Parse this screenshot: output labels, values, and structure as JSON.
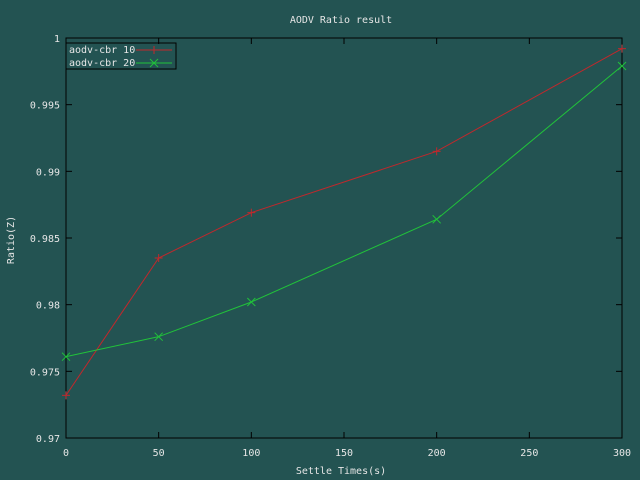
{
  "chart_data": {
    "type": "line",
    "title": "AODV Ratio result",
    "xlabel": "Settle Times(s)",
    "ylabel": "Ratio(Z)",
    "xlim": [
      0,
      300
    ],
    "ylim": [
      0.97,
      1
    ],
    "xticks": [
      "0",
      "50",
      "100",
      "150",
      "200",
      "250",
      "300"
    ],
    "yticks": [
      "0.97",
      "0.975",
      "0.98",
      "0.985",
      "0.99",
      "0.995",
      "1"
    ],
    "grid": false,
    "legend_position": "top-left",
    "series": [
      {
        "name": "aodv-cbr 10",
        "color": "#c0282c",
        "marker": "plus",
        "x": [
          0,
          50,
          100,
          200,
          300
        ],
        "y": [
          0.9732,
          0.9835,
          0.9869,
          0.9915,
          0.9992
        ]
      },
      {
        "name": "aodv-cbr 20",
        "color": "#21c33a",
        "marker": "cross",
        "x": [
          0,
          50,
          100,
          200,
          300
        ],
        "y": [
          0.9761,
          0.9776,
          0.9802,
          0.9864,
          0.9979
        ]
      }
    ]
  }
}
